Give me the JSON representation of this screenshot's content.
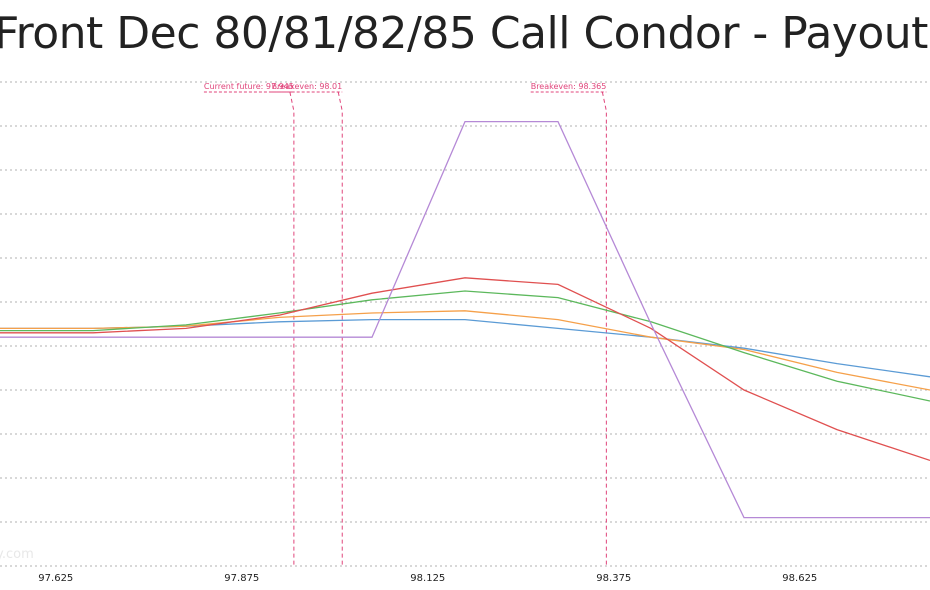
{
  "chart_data": {
    "type": "line",
    "title": "Front Dec 80/81/82/85 Call Condor - Payout",
    "watermark": "y.com",
    "x": [
      97.55,
      97.675,
      97.8,
      97.925,
      98.05,
      98.175,
      98.3,
      98.425,
      98.55,
      98.675,
      98.8
    ],
    "xlim": [
      97.55,
      98.8
    ],
    "x_ticks": [
      "97.625",
      "97.875",
      "98.125",
      "98.375",
      "98.625"
    ],
    "x_tick_values": [
      97.625,
      97.875,
      98.125,
      98.375,
      98.625
    ],
    "ylim": [
      -55,
      60
    ],
    "y_grid_values": [
      55,
      45,
      35,
      25,
      15,
      5,
      -5,
      -15,
      -25,
      -35,
      -45,
      -55
    ],
    "grid": "horizontal-dashed",
    "series": [
      {
        "color": "#5b9bd5",
        "values": [
          -1,
          -1,
          -0.5,
          0.5,
          1,
          1,
          -1,
          -3,
          -5.5,
          -9,
          -12
        ]
      },
      {
        "color": "#f5a04a",
        "values": [
          -1,
          -1,
          -0.5,
          1.5,
          2.5,
          3,
          1,
          -3,
          -5.8,
          -11,
          -15
        ]
      },
      {
        "color": "#5cb85c",
        "values": [
          -1.5,
          -1.5,
          -0.2,
          2.5,
          5.5,
          7.5,
          6,
          0.5,
          -6.5,
          -13,
          -17.5
        ]
      },
      {
        "color": "#e05050",
        "values": [
          -2,
          -2,
          -1,
          2,
          7,
          10.5,
          9,
          -1,
          -15,
          -24,
          -31
        ]
      },
      {
        "color": "#b589d6",
        "values": [
          -3,
          -3,
          -3,
          -3,
          -3,
          46,
          46,
          0,
          -44,
          -44,
          -44
        ]
      }
    ],
    "markers": [
      {
        "label": "Current future: 97.945",
        "x": 97.945
      },
      {
        "label": "Breakeven: 98.01",
        "x": 98.01
      },
      {
        "label": "Breakeven: 98.365",
        "x": 98.365
      }
    ],
    "marker_color": "#e0457b",
    "grid_color": "#b0b0b0"
  }
}
